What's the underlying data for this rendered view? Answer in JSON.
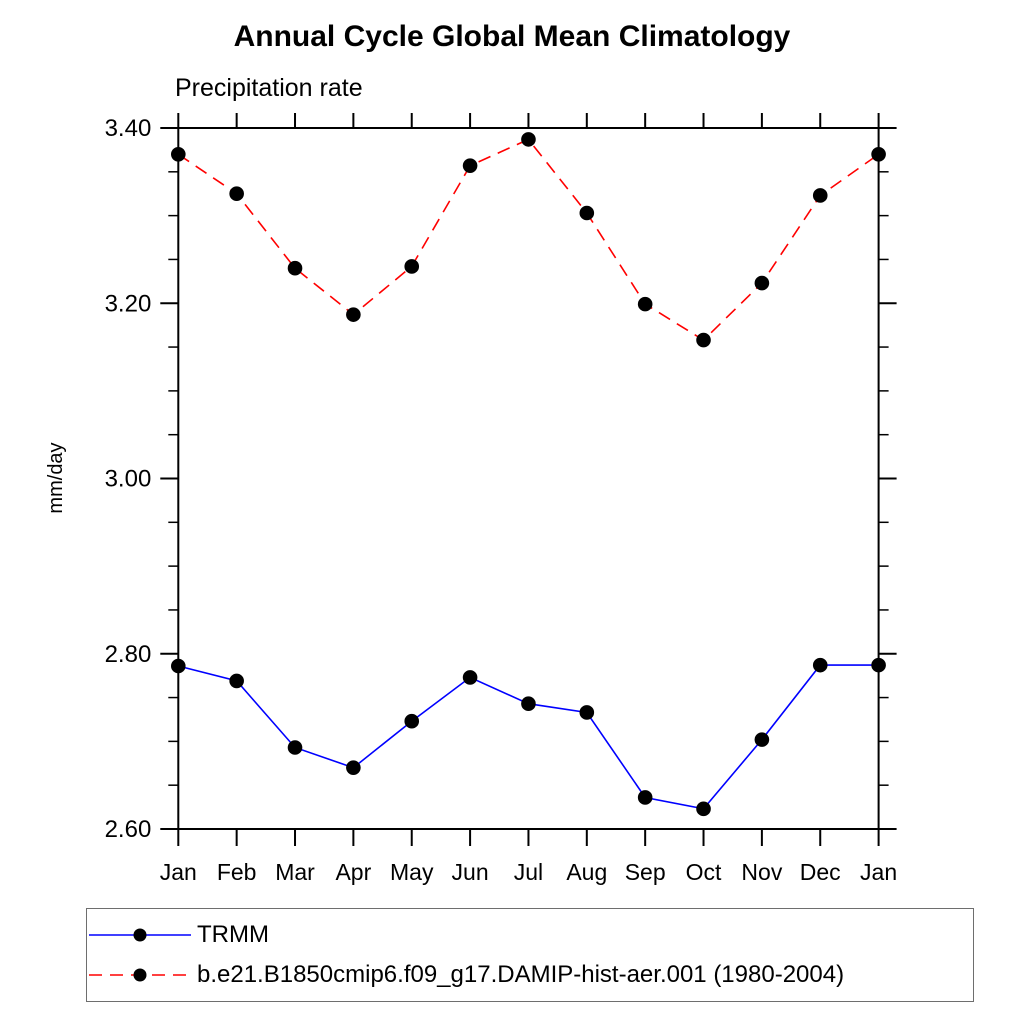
{
  "page": {
    "background": "#ffffff"
  },
  "chart_data": {
    "type": "line",
    "title": "Annual Cycle Global Mean Climatology",
    "subtitle": "Precipitation rate",
    "ylabel": "mm/day",
    "categories": [
      "Jan",
      "Feb",
      "Mar",
      "Apr",
      "May",
      "Jun",
      "Jul",
      "Aug",
      "Sep",
      "Oct",
      "Nov",
      "Dec",
      "Jan"
    ],
    "ylim": [
      2.6,
      3.4
    ],
    "ytick_major": [
      2.6,
      2.8,
      3.0,
      3.2,
      3.4
    ],
    "ytick_minor_step": 0.05,
    "grid": false,
    "legend_position": "bottom-left-box",
    "axis_color": "#000000",
    "marker_color": "#000000",
    "series": [
      {
        "name": "TRMM",
        "color": "#0000ff",
        "style": "solid",
        "marker": "filled-circle",
        "values": [
          2.786,
          2.769,
          2.693,
          2.67,
          2.723,
          2.773,
          2.743,
          2.733,
          2.636,
          2.623,
          2.702,
          2.787,
          2.787
        ]
      },
      {
        "name": "b.e21.B1850cmip6.f09_g17.DAMIP-hist-aer.001 (1980-2004)",
        "color": "#ff0000",
        "style": "dashed",
        "marker": "filled-circle",
        "values": [
          3.37,
          3.325,
          3.24,
          3.187,
          3.242,
          3.357,
          3.387,
          3.303,
          3.199,
          3.158,
          3.223,
          3.323,
          3.37
        ]
      }
    ]
  }
}
